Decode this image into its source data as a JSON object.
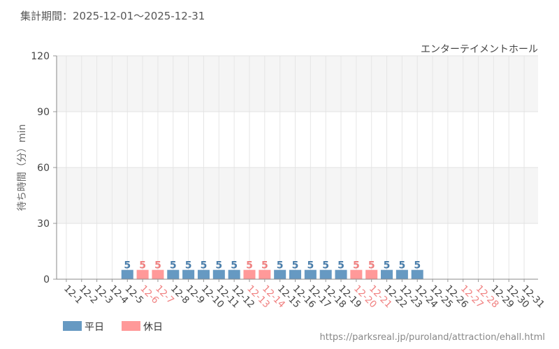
{
  "header": {
    "period_label": "集計期間：2025-12-01～2025-12-31"
  },
  "chart_data": {
    "type": "bar",
    "subtitle": "エンターテイメントホール",
    "ylabel": "待ち時間（分）min",
    "ylim": [
      0,
      120
    ],
    "yticks": [
      0,
      30,
      60,
      90,
      120
    ],
    "grid": true,
    "categories": [
      "12-1",
      "12-2",
      "12-3",
      "12-4",
      "12-5",
      "12-6",
      "12-7",
      "12-8",
      "12-9",
      "12-10",
      "12-11",
      "12-12",
      "12-13",
      "12-14",
      "12-15",
      "12-16",
      "12-17",
      "12-18",
      "12-19",
      "12-20",
      "12-21",
      "12-22",
      "12-23",
      "12-24",
      "12-25",
      "12-26",
      "12-27",
      "12-28",
      "12-29",
      "12-30",
      "12-31"
    ],
    "day_type": [
      "weekday",
      "weekday",
      "weekday",
      "weekday",
      "weekday",
      "holiday",
      "holiday",
      "weekday",
      "weekday",
      "weekday",
      "weekday",
      "weekday",
      "holiday",
      "holiday",
      "weekday",
      "weekday",
      "weekday",
      "weekday",
      "weekday",
      "holiday",
      "holiday",
      "weekday",
      "weekday",
      "weekday",
      "weekday",
      "weekday",
      "holiday",
      "holiday",
      "weekday",
      "weekday",
      "weekday"
    ],
    "values": [
      null,
      null,
      null,
      null,
      5,
      5,
      5,
      5,
      5,
      5,
      5,
      5,
      5,
      5,
      5,
      5,
      5,
      5,
      5,
      5,
      5,
      5,
      5,
      5,
      null,
      null,
      null,
      null,
      null,
      null,
      null
    ],
    "series": [
      {
        "name": "平日",
        "key": "weekday",
        "color": "#6699c2"
      },
      {
        "name": "休日",
        "key": "holiday",
        "color": "#ff9999"
      }
    ],
    "legend_position": "bottom-left",
    "colors": {
      "weekday_bar": "#6699c2",
      "holiday_bar": "#ff9999",
      "weekday_label": "#4a7eab",
      "holiday_label": "#f08080",
      "weekday_tick": "#444444",
      "holiday_tick": "#f08080"
    }
  },
  "footer": {
    "source_url": "https://parksreal.jp/puroland/attraction/ehall.html"
  }
}
